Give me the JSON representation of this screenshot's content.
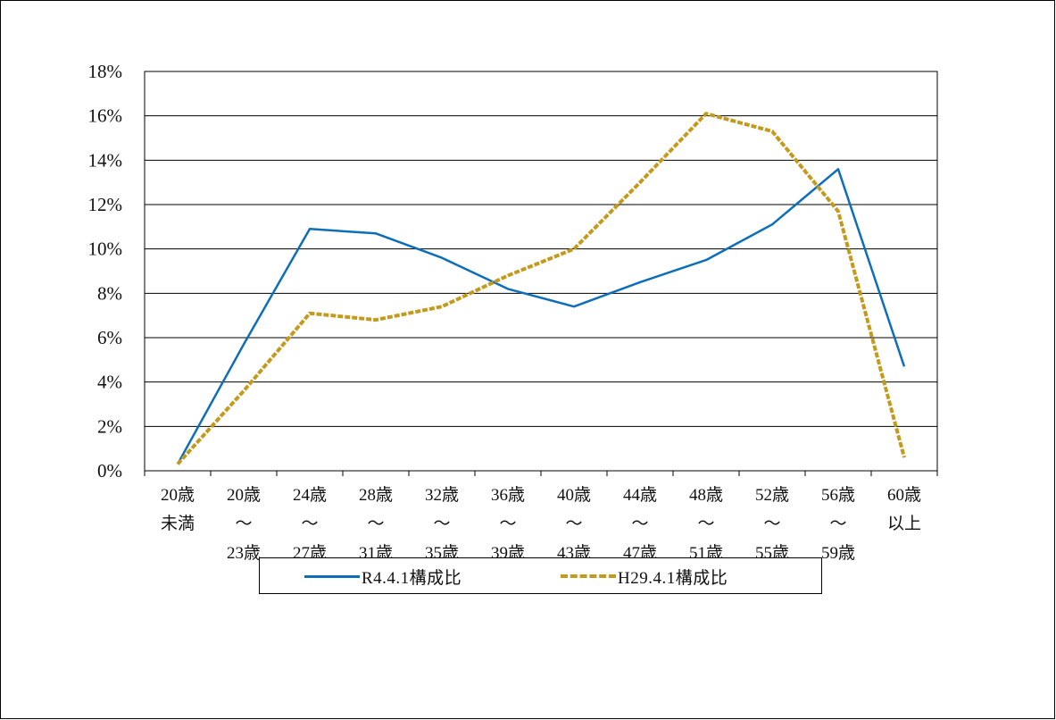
{
  "chart_data": {
    "type": "line",
    "title": "",
    "xlabel": "",
    "ylabel": "",
    "ylim": [
      0,
      18
    ],
    "yticks": [
      "0%",
      "2%",
      "4%",
      "6%",
      "8%",
      "10%",
      "12%",
      "14%",
      "16%",
      "18%"
    ],
    "grid": "horizontal",
    "legend_position": "bottom",
    "categories": [
      {
        "top": "20歳",
        "mid": "未満",
        "bot": ""
      },
      {
        "top": "20歳",
        "mid": "～",
        "bot": "23歳"
      },
      {
        "top": "24歳",
        "mid": "～",
        "bot": "27歳"
      },
      {
        "top": "28歳",
        "mid": "～",
        "bot": "31歳"
      },
      {
        "top": "32歳",
        "mid": "～",
        "bot": "35歳"
      },
      {
        "top": "36歳",
        "mid": "～",
        "bot": "39歳"
      },
      {
        "top": "40歳",
        "mid": "～",
        "bot": "43歳"
      },
      {
        "top": "44歳",
        "mid": "～",
        "bot": "47歳"
      },
      {
        "top": "48歳",
        "mid": "～",
        "bot": "51歳"
      },
      {
        "top": "52歳",
        "mid": "～",
        "bot": "55歳"
      },
      {
        "top": "56歳",
        "mid": "～",
        "bot": "59歳"
      },
      {
        "top": "60歳",
        "mid": "以上",
        "bot": ""
      }
    ],
    "series": [
      {
        "name": "R4.4.1構成比",
        "color": "#0e6eb8",
        "style": "solid",
        "values": [
          0.3,
          5.7,
          10.9,
          10.7,
          9.6,
          8.2,
          7.4,
          8.5,
          9.5,
          11.1,
          13.6,
          4.7
        ]
      },
      {
        "name": "H29.4.1構成比",
        "color": "#c49a1c",
        "style": "dashed",
        "values": [
          0.3,
          3.6,
          7.1,
          6.8,
          7.4,
          8.8,
          10.0,
          13.0,
          16.1,
          15.3,
          11.7,
          0.6
        ]
      }
    ]
  },
  "legend": {
    "items": [
      "R4.4.1構成比",
      "H29.4.1構成比"
    ]
  }
}
